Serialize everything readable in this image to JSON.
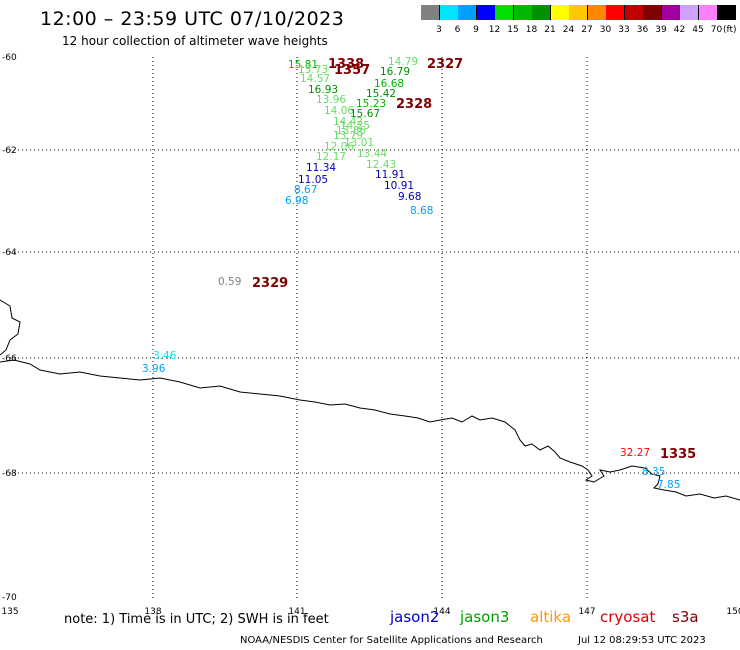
{
  "header": {
    "title": "12:00 – 23:59 UTC 07/10/2023",
    "subtitle": "12 hour collection of altimeter wave heights"
  },
  "legend": {
    "colors": [
      "#808080",
      "#00e5ff",
      "#00a0ff",
      "#0000ff",
      "#00e000",
      "#00b800",
      "#009000",
      "#ffff00",
      "#ffc800",
      "#ff8800",
      "#ff0000",
      "#c00000",
      "#800000",
      "#a000a0",
      "#d0a0ff",
      "#ff80ff",
      "#000000"
    ],
    "ticks": [
      "3",
      "6",
      "9",
      "12",
      "15",
      "18",
      "21",
      "24",
      "27",
      "30",
      "33",
      "36",
      "39",
      "42",
      "45",
      "70"
    ],
    "unit": "(ft)"
  },
  "map": {
    "lon_ticks": [
      "135",
      "138",
      "141",
      "144",
      "147",
      "150"
    ],
    "lat_ticks": [
      "-60",
      "-62",
      "-64",
      "-66",
      "-68",
      "-70"
    ],
    "lon_range": [
      135,
      150
    ],
    "lat_range": [
      -60,
      -70
    ],
    "grid": "dotted",
    "coastline_color": "#000000"
  },
  "observations": [
    {
      "v": "15.81",
      "c": "#00b800"
    },
    {
      "v": "14.79",
      "c": "#66dd66"
    },
    {
      "v": "15.73",
      "c": "#66dd66"
    },
    {
      "v": "14.57",
      "c": "#66dd66"
    },
    {
      "v": "16.79",
      "c": "#009000"
    },
    {
      "v": "16.68",
      "c": "#00b800"
    },
    {
      "v": "16.93",
      "c": "#009000"
    },
    {
      "v": "15.42",
      "c": "#009000"
    },
    {
      "v": "13.96",
      "c": "#66dd66"
    },
    {
      "v": "15.23",
      "c": "#00b800"
    },
    {
      "v": "14.06",
      "c": "#66dd66"
    },
    {
      "v": "15.67",
      "c": "#009000"
    },
    {
      "v": "14.42",
      "c": "#66dd66"
    },
    {
      "v": "14.25",
      "c": "#66dd66"
    },
    {
      "v": "13.86",
      "c": "#66dd66"
    },
    {
      "v": "13.79",
      "c": "#66dd66"
    },
    {
      "v": "13.01",
      "c": "#66dd66"
    },
    {
      "v": "12.06",
      "c": "#66dd66"
    },
    {
      "v": "13.44",
      "c": "#66dd66"
    },
    {
      "v": "12.17",
      "c": "#66dd66"
    },
    {
      "v": "12.43",
      "c": "#66dd66"
    },
    {
      "v": "11.34",
      "c": "#0000c0"
    },
    {
      "v": "11.91",
      "c": "#0000c0"
    },
    {
      "v": "11.05",
      "c": "#0000c0"
    },
    {
      "v": "10.91",
      "c": "#0000c0"
    },
    {
      "v": "8.67",
      "c": "#00a0ff"
    },
    {
      "v": "9.68",
      "c": "#0000c0"
    },
    {
      "v": "6.98",
      "c": "#00a0ff"
    },
    {
      "v": "8.68",
      "c": "#00a0ff"
    },
    {
      "v": "0.59",
      "c": "#808080"
    },
    {
      "v": "3.46",
      "c": "#00e5ff"
    },
    {
      "v": "3.96",
      "c": "#00a0ff"
    },
    {
      "v": "32.27",
      "c": "#ff0000"
    },
    {
      "v": "8.35",
      "c": "#00a0ff"
    },
    {
      "v": "7.85",
      "c": "#00a0ff"
    }
  ],
  "times": [
    {
      "t": "1338",
      "c": "#800000"
    },
    {
      "t": "1357",
      "c": "#800000"
    },
    {
      "t": "2327",
      "c": "#800000"
    },
    {
      "t": "2328",
      "c": "#800000"
    },
    {
      "t": "2329",
      "c": "#800000"
    },
    {
      "t": "1335",
      "c": "#800000"
    }
  ],
  "footer": {
    "note": "note:  1) Time is in UTC;  2) SWH is in feet",
    "satellites": [
      {
        "name": "jason2",
        "color": "#0000cc"
      },
      {
        "name": "jason3",
        "color": "#00a000"
      },
      {
        "name": "altika",
        "color": "#ff9900"
      },
      {
        "name": "cryosat",
        "color": "#dd0000"
      },
      {
        "name": "s3a",
        "color": "#800000"
      }
    ],
    "credit": "NOAA/NESDIS Center for Satellite Applications and Research",
    "generated": "Jul 12 08:29:53 UTC 2023"
  }
}
